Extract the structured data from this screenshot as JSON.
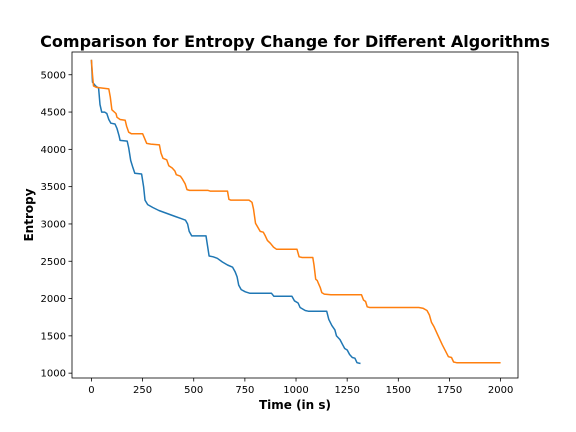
{
  "chart_data": {
    "type": "line",
    "title": "Comparison for Entropy Change for Different Algorithms",
    "xlabel": "Time (in s)",
    "ylabel": "Entropy",
    "xlim": [
      -95,
      2085
    ],
    "ylim": [
      935,
      5305
    ],
    "x_ticks": [
      0,
      250,
      500,
      750,
      1000,
      1250,
      1500,
      1750,
      2000
    ],
    "y_ticks": [
      1000,
      1500,
      2000,
      2500,
      3000,
      3500,
      4000,
      4500,
      5000
    ],
    "grid": false,
    "legend": "none",
    "series": [
      {
        "color": "#1f77b4",
        "points": [
          [
            0,
            5200
          ],
          [
            5,
            4900
          ],
          [
            20,
            4850
          ],
          [
            35,
            4820
          ],
          [
            42,
            4600
          ],
          [
            50,
            4500
          ],
          [
            65,
            4500
          ],
          [
            75,
            4480
          ],
          [
            85,
            4400
          ],
          [
            95,
            4350
          ],
          [
            115,
            4340
          ],
          [
            125,
            4280
          ],
          [
            135,
            4180
          ],
          [
            140,
            4120
          ],
          [
            175,
            4110
          ],
          [
            182,
            4020
          ],
          [
            192,
            3850
          ],
          [
            202,
            3760
          ],
          [
            212,
            3680
          ],
          [
            245,
            3670
          ],
          [
            255,
            3500
          ],
          [
            262,
            3320
          ],
          [
            275,
            3260
          ],
          [
            300,
            3220
          ],
          [
            330,
            3180
          ],
          [
            370,
            3140
          ],
          [
            410,
            3100
          ],
          [
            440,
            3070
          ],
          [
            460,
            3050
          ],
          [
            470,
            3000
          ],
          [
            478,
            2900
          ],
          [
            490,
            2840
          ],
          [
            560,
            2840
          ],
          [
            568,
            2700
          ],
          [
            575,
            2570
          ],
          [
            595,
            2560
          ],
          [
            615,
            2540
          ],
          [
            640,
            2490
          ],
          [
            665,
            2450
          ],
          [
            690,
            2420
          ],
          [
            702,
            2360
          ],
          [
            712,
            2290
          ],
          [
            720,
            2180
          ],
          [
            732,
            2120
          ],
          [
            752,
            2090
          ],
          [
            775,
            2070
          ],
          [
            880,
            2070
          ],
          [
            892,
            2030
          ],
          [
            980,
            2030
          ],
          [
            992,
            1970
          ],
          [
            1010,
            1940
          ],
          [
            1020,
            1880
          ],
          [
            1045,
            1840
          ],
          [
            1060,
            1830
          ],
          [
            1150,
            1830
          ],
          [
            1160,
            1720
          ],
          [
            1175,
            1640
          ],
          [
            1190,
            1580
          ],
          [
            1198,
            1500
          ],
          [
            1215,
            1450
          ],
          [
            1228,
            1380
          ],
          [
            1238,
            1330
          ],
          [
            1250,
            1310
          ],
          [
            1262,
            1250
          ],
          [
            1275,
            1210
          ],
          [
            1288,
            1200
          ],
          [
            1298,
            1140
          ],
          [
            1315,
            1130
          ]
        ]
      },
      {
        "color": "#ff7f0e",
        "points": [
          [
            0,
            5200
          ],
          [
            5,
            5000
          ],
          [
            10,
            4850
          ],
          [
            25,
            4830
          ],
          [
            60,
            4820
          ],
          [
            85,
            4810
          ],
          [
            92,
            4700
          ],
          [
            100,
            4530
          ],
          [
            120,
            4480
          ],
          [
            125,
            4430
          ],
          [
            140,
            4400
          ],
          [
            165,
            4390
          ],
          [
            172,
            4310
          ],
          [
            182,
            4230
          ],
          [
            195,
            4210
          ],
          [
            250,
            4210
          ],
          [
            258,
            4160
          ],
          [
            270,
            4080
          ],
          [
            290,
            4070
          ],
          [
            332,
            4060
          ],
          [
            340,
            3950
          ],
          [
            350,
            3880
          ],
          [
            368,
            3860
          ],
          [
            378,
            3780
          ],
          [
            395,
            3750
          ],
          [
            408,
            3710
          ],
          [
            415,
            3660
          ],
          [
            435,
            3640
          ],
          [
            445,
            3600
          ],
          [
            458,
            3540
          ],
          [
            467,
            3460
          ],
          [
            480,
            3450
          ],
          [
            570,
            3450
          ],
          [
            580,
            3440
          ],
          [
            665,
            3440
          ],
          [
            672,
            3330
          ],
          [
            680,
            3320
          ],
          [
            770,
            3320
          ],
          [
            785,
            3290
          ],
          [
            792,
            3200
          ],
          [
            802,
            3010
          ],
          [
            812,
            2960
          ],
          [
            825,
            2900
          ],
          [
            840,
            2890
          ],
          [
            850,
            2840
          ],
          [
            860,
            2780
          ],
          [
            875,
            2740
          ],
          [
            890,
            2690
          ],
          [
            905,
            2660
          ],
          [
            1005,
            2660
          ],
          [
            1015,
            2560
          ],
          [
            1030,
            2550
          ],
          [
            1082,
            2550
          ],
          [
            1088,
            2450
          ],
          [
            1096,
            2260
          ],
          [
            1104,
            2240
          ],
          [
            1110,
            2200
          ],
          [
            1118,
            2150
          ],
          [
            1126,
            2080
          ],
          [
            1138,
            2060
          ],
          [
            1170,
            2050
          ],
          [
            1300,
            2050
          ],
          [
            1320,
            2050
          ],
          [
            1330,
            1980
          ],
          [
            1340,
            1960
          ],
          [
            1348,
            1890
          ],
          [
            1360,
            1880
          ],
          [
            1600,
            1880
          ],
          [
            1620,
            1870
          ],
          [
            1640,
            1840
          ],
          [
            1652,
            1780
          ],
          [
            1662,
            1680
          ],
          [
            1675,
            1620
          ],
          [
            1695,
            1500
          ],
          [
            1715,
            1380
          ],
          [
            1730,
            1300
          ],
          [
            1745,
            1220
          ],
          [
            1760,
            1210
          ],
          [
            1770,
            1150
          ],
          [
            1785,
            1140
          ],
          [
            1920,
            1140
          ],
          [
            2000,
            1140
          ]
        ]
      }
    ]
  }
}
